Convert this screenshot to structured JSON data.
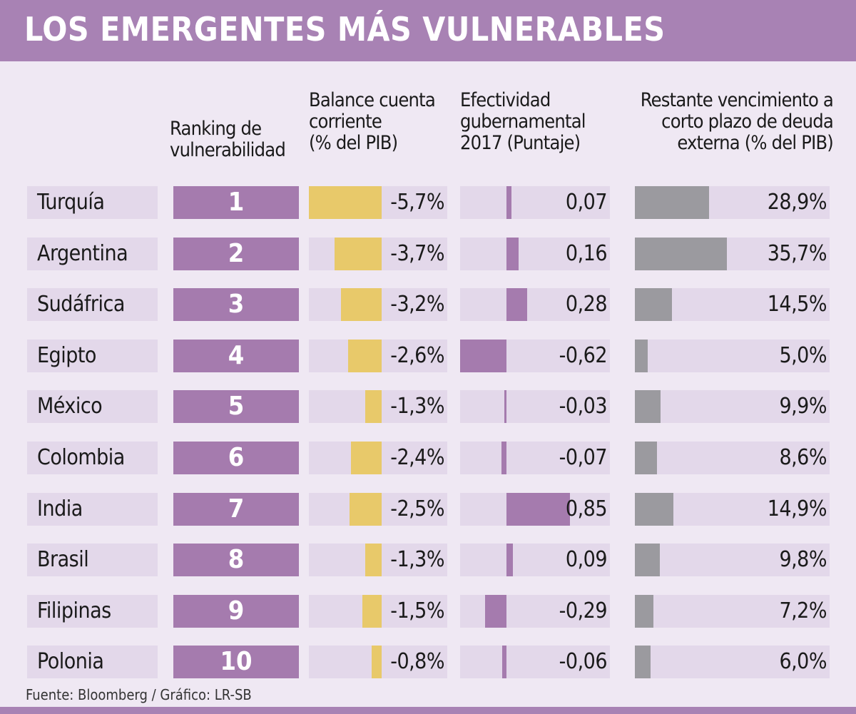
{
  "title": "LOS EMERGENTES MÁS VULNERABLES",
  "colors": {
    "purple": "#a57bae",
    "yellow": "#e8c96a",
    "gray": "#9b9a9f",
    "track": "#e3d8ea"
  },
  "chart_data": {
    "type": "table",
    "columns": [
      "Ranking de\nvulnerabilidad",
      "Balance cuenta\ncorriente\n(% del PIB)",
      "Efectividad\ngubernamental\n2017 (Puntaje)",
      "Restante vencimiento a\ncorto plazo  de deuda\nexterna (% del PIB)"
    ],
    "rows": [
      {
        "country": "Turquía",
        "rank": "1",
        "balance": -5.7,
        "balance_label": "-5,7%",
        "effectiveness": 0.07,
        "effectiveness_label": "0,07",
        "debt": 28.9,
        "debt_label": "28,9%"
      },
      {
        "country": "Argentina",
        "rank": "2",
        "balance": -3.7,
        "balance_label": "-3,7%",
        "effectiveness": 0.16,
        "effectiveness_label": "0,16",
        "debt": 35.7,
        "debt_label": "35,7%"
      },
      {
        "country": "Sudáfrica",
        "rank": "3",
        "balance": -3.2,
        "balance_label": "-3,2%",
        "effectiveness": 0.28,
        "effectiveness_label": "0,28",
        "debt": 14.5,
        "debt_label": "14,5%"
      },
      {
        "country": "Egipto",
        "rank": "4",
        "balance": -2.6,
        "balance_label": "-2,6%",
        "effectiveness": -0.62,
        "effectiveness_label": "-0,62",
        "debt": 5.0,
        "debt_label": "5,0%"
      },
      {
        "country": "México",
        "rank": "5",
        "balance": -1.3,
        "balance_label": "-1,3%",
        "effectiveness": -0.03,
        "effectiveness_label": "-0,03",
        "debt": 9.9,
        "debt_label": "9,9%"
      },
      {
        "country": "Colombia",
        "rank": "6",
        "balance": -2.4,
        "balance_label": "-2,4%",
        "effectiveness": -0.07,
        "effectiveness_label": "-0,07",
        "debt": 8.6,
        "debt_label": "8,6%"
      },
      {
        "country": "India",
        "rank": "7",
        "balance": -2.5,
        "balance_label": "-2,5%",
        "effectiveness": 0.85,
        "effectiveness_label": "0,85",
        "debt": 14.9,
        "debt_label": "14,9%"
      },
      {
        "country": "Brasil",
        "rank": "8",
        "balance": -1.3,
        "balance_label": "-1,3%",
        "effectiveness": 0.09,
        "effectiveness_label": "0,09",
        "debt": 9.8,
        "debt_label": "9,8%"
      },
      {
        "country": "Filipinas",
        "rank": "9",
        "balance": -1.5,
        "balance_label": "-1,5%",
        "effectiveness": -0.29,
        "effectiveness_label": "-0,29",
        "debt": 7.2,
        "debt_label": "7,2%"
      },
      {
        "country": "Polonia",
        "rank": "10",
        "balance": -0.8,
        "balance_label": "-0,8%",
        "effectiveness": -0.06,
        "effectiveness_label": "-0,06",
        "debt": 6.0,
        "debt_label": "6,0%"
      }
    ]
  },
  "footer": "Fuente: Bloomberg / Gráfico: LR-SB"
}
